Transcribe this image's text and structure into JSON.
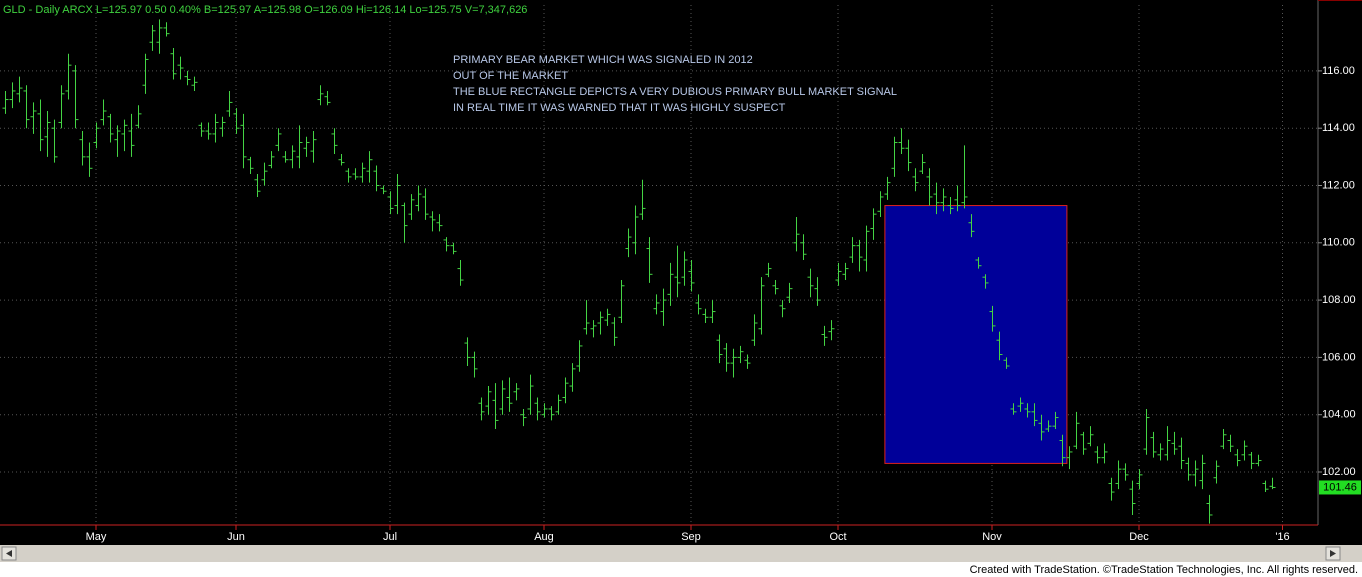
{
  "chart_data": {
    "type": "ohlc",
    "header": "GLD - Daily  ARCX  L=125.97  0.50  0.40%  B=125.97  A=125.98  O=126.09  Hi=126.14  Lo=125.75  V=7,347,626",
    "annotations": [
      "PRIMARY BEAR MARKET WHICH WAS SIGNALED IN 2012",
      "OUT OF THE MARKET",
      "THE BLUE RECTANGLE DEPICTS A VERY DUBIOUS PRIMARY BULL MARKET SIGNAL",
      "IN REAL TIME IT WAS WARNED THAT IT WAS HIGHLY SUSPECT"
    ],
    "footer": "Created with TradeStation. ©TradeStation Technologies, Inc. All rights reserved.",
    "color": "#44d444",
    "ylim": [
      100.15,
      118.3
    ],
    "yticks": [
      {
        "value": 102,
        "label": "102.00"
      },
      {
        "value": 104,
        "label": "104.00"
      },
      {
        "value": 106,
        "label": "106.00"
      },
      {
        "value": 108,
        "label": "108.00"
      },
      {
        "value": 110,
        "label": "110.00"
      },
      {
        "value": 112,
        "label": "112.00"
      },
      {
        "value": 114,
        "label": "114.00"
      },
      {
        "value": 116,
        "label": "116.00"
      }
    ],
    "xticks": [
      {
        "value": 13,
        "label": "May"
      },
      {
        "value": 33,
        "label": "Jun"
      },
      {
        "value": 55,
        "label": "Jul"
      },
      {
        "value": 77,
        "label": "Aug"
      },
      {
        "value": 98,
        "label": "Sep"
      },
      {
        "value": 119,
        "label": "Oct"
      },
      {
        "value": 141,
        "label": "Nov"
      },
      {
        "value": 162,
        "label": "Dec"
      },
      {
        "value": 182.5,
        "label": "'16"
      }
    ],
    "grid": true,
    "last_price": 101.46,
    "rectangle": {
      "start": 125.7,
      "end": 151.7,
      "top": 111.3,
      "bottom": 102.3,
      "fill": "#000099",
      "border": "#dd2222"
    },
    "ohlc": [
      [
        114.7,
        115.3,
        114.5,
        115.0
      ],
      [
        115.0,
        115.6,
        114.7,
        115.3
      ],
      [
        115.2,
        115.8,
        114.9,
        115.4
      ],
      [
        115.3,
        115.5,
        114.0,
        114.3
      ],
      [
        114.4,
        114.9,
        113.8,
        114.6
      ],
      [
        114.5,
        115.0,
        113.2,
        113.6
      ],
      [
        113.7,
        114.6,
        113.0,
        114.2
      ],
      [
        114.0,
        114.3,
        112.8,
        113.0
      ],
      [
        114.2,
        115.5,
        114.0,
        115.2
      ],
      [
        115.3,
        116.6,
        115.0,
        116.2
      ],
      [
        116.0,
        116.2,
        114.0,
        114.3
      ],
      [
        113.6,
        113.9,
        112.7,
        113.0
      ],
      [
        113.0,
        113.5,
        112.3,
        112.6
      ],
      [
        113.5,
        114.2,
        113.3,
        114.0
      ],
      [
        114.3,
        115.0,
        114.1,
        114.6
      ],
      [
        114.4,
        114.5,
        113.5,
        113.8
      ],
      [
        113.6,
        114.1,
        113.0,
        113.9
      ],
      [
        113.8,
        114.3,
        113.2,
        114.1
      ],
      [
        113.9,
        114.5,
        113.0,
        113.4
      ],
      [
        114.1,
        114.8,
        114.0,
        114.5
      ],
      [
        115.5,
        116.6,
        115.2,
        116.4
      ],
      [
        117.0,
        117.6,
        116.7,
        117.4
      ],
      [
        117.0,
        117.8,
        116.6,
        117.5
      ],
      [
        117.5,
        117.7,
        117.2,
        117.3
      ],
      [
        116.6,
        116.8,
        115.7,
        115.9
      ],
      [
        116.2,
        116.5,
        115.7,
        116.1
      ],
      [
        115.8,
        116.0,
        115.5,
        115.7
      ],
      [
        115.5,
        115.8,
        115.3,
        115.6
      ],
      [
        114.1,
        114.2,
        113.7,
        113.9
      ],
      [
        113.9,
        114.2,
        113.6,
        113.8
      ],
      [
        113.8,
        114.5,
        113.5,
        114.2
      ],
      [
        114.0,
        114.4,
        113.7,
        114.2
      ],
      [
        114.6,
        115.3,
        114.4,
        114.9
      ],
      [
        114.5,
        114.7,
        113.8,
        114.0
      ],
      [
        114.1,
        114.5,
        112.6,
        113.0
      ],
      [
        112.9,
        113.0,
        112.4,
        112.6
      ],
      [
        112.2,
        112.4,
        111.6,
        111.8
      ],
      [
        112.2,
        112.8,
        112.0,
        112.5
      ],
      [
        112.7,
        113.2,
        112.6,
        113.0
      ],
      [
        113.4,
        114.0,
        113.2,
        113.8
      ],
      [
        113.0,
        113.2,
        112.8,
        112.9
      ],
      [
        112.9,
        113.4,
        112.6,
        113.2
      ],
      [
        113.0,
        114.1,
        112.6,
        113.5
      ],
      [
        113.3,
        113.7,
        113.0,
        113.5
      ],
      [
        113.2,
        113.9,
        112.8,
        113.6
      ],
      [
        115.0,
        115.5,
        114.8,
        115.2
      ],
      [
        115.1,
        115.3,
        114.8,
        114.9
      ],
      [
        113.8,
        114.0,
        113.1,
        113.4
      ],
      [
        112.9,
        113.1,
        112.7,
        112.8
      ],
      [
        112.5,
        112.6,
        112.1,
        112.3
      ],
      [
        112.4,
        112.6,
        112.2,
        112.3
      ],
      [
        112.3,
        112.8,
        112.1,
        112.6
      ],
      [
        112.5,
        113.2,
        112.1,
        112.9
      ],
      [
        112.5,
        112.7,
        111.8,
        112.0
      ],
      [
        111.9,
        112.0,
        111.7,
        111.8
      ],
      [
        111.6,
        111.8,
        111.0,
        111.2
      ],
      [
        111.3,
        112.4,
        111.0,
        112.0
      ],
      [
        111.3,
        111.4,
        110.0,
        110.6
      ],
      [
        111.0,
        111.7,
        110.8,
        111.5
      ],
      [
        111.3,
        112.0,
        111.1,
        111.7
      ],
      [
        111.6,
        111.9,
        110.8,
        111.0
      ],
      [
        110.9,
        111.1,
        110.4,
        110.8
      ],
      [
        110.7,
        111.0,
        110.4,
        110.6
      ],
      [
        110.1,
        110.2,
        109.7,
        109.9
      ],
      [
        109.9,
        110.0,
        109.6,
        109.7
      ],
      [
        109.1,
        109.4,
        108.5,
        108.7
      ],
      [
        106.5,
        106.7,
        105.7,
        106.0
      ],
      [
        106.0,
        106.2,
        105.3,
        105.6
      ],
      [
        104.4,
        104.6,
        103.8,
        104.1
      ],
      [
        104.3,
        105.0,
        104.0,
        104.8
      ],
      [
        104.5,
        105.1,
        103.5,
        103.8
      ],
      [
        104.2,
        105.2,
        104.0,
        104.9
      ],
      [
        104.6,
        105.3,
        104.1,
        104.4
      ],
      [
        104.8,
        105.1,
        104.5,
        104.9
      ],
      [
        104.0,
        104.2,
        103.6,
        103.9
      ],
      [
        104.2,
        105.4,
        104.0,
        105.0
      ],
      [
        104.4,
        104.6,
        103.8,
        104.1
      ],
      [
        104.0,
        104.4,
        103.9,
        104.2
      ],
      [
        104.2,
        104.3,
        103.8,
        104.0
      ],
      [
        104.1,
        104.7,
        104.0,
        104.5
      ],
      [
        104.6,
        105.3,
        104.4,
        105.1
      ],
      [
        105.0,
        105.8,
        104.8,
        105.6
      ],
      [
        105.7,
        106.6,
        105.5,
        106.4
      ],
      [
        107.0,
        108.0,
        106.8,
        107.2
      ],
      [
        107.0,
        107.3,
        106.7,
        107.1
      ],
      [
        107.2,
        107.6,
        106.8,
        107.4
      ],
      [
        107.3,
        107.7,
        107.1,
        107.5
      ],
      [
        107.2,
        107.4,
        106.4,
        106.7
      ],
      [
        107.4,
        108.7,
        107.2,
        108.5
      ],
      [
        109.8,
        110.5,
        109.5,
        110.2
      ],
      [
        110.0,
        111.3,
        109.6,
        110.9
      ],
      [
        111.0,
        112.2,
        110.8,
        111.2
      ],
      [
        109.8,
        110.2,
        108.6,
        108.9
      ],
      [
        107.7,
        108.2,
        107.5,
        107.9
      ],
      [
        107.6,
        108.4,
        107.1,
        108.0
      ],
      [
        108.2,
        109.3,
        107.8,
        108.9
      ],
      [
        108.8,
        109.9,
        108.1,
        108.6
      ],
      [
        108.8,
        109.7,
        108.5,
        109.4
      ],
      [
        109.0,
        109.4,
        108.3,
        108.6
      ],
      [
        107.9,
        108.2,
        107.5,
        107.7
      ],
      [
        107.5,
        107.7,
        107.2,
        107.4
      ],
      [
        107.4,
        108.0,
        107.2,
        107.6
      ],
      [
        106.6,
        106.8,
        105.8,
        106.1
      ],
      [
        106.3,
        106.5,
        105.5,
        105.8
      ],
      [
        105.8,
        106.3,
        105.3,
        106.0
      ],
      [
        106.0,
        106.4,
        105.8,
        106.2
      ],
      [
        105.9,
        106.1,
        105.6,
        105.8
      ],
      [
        106.6,
        107.5,
        106.4,
        107.2
      ],
      [
        107.0,
        108.8,
        106.8,
        108.5
      ],
      [
        108.9,
        109.3,
        108.8,
        109.1
      ],
      [
        108.5,
        108.7,
        108.2,
        108.4
      ],
      [
        107.8,
        108.0,
        107.4,
        107.7
      ],
      [
        108.1,
        108.6,
        107.9,
        108.4
      ],
      [
        110.0,
        110.9,
        109.7,
        110.3
      ],
      [
        110.0,
        110.3,
        109.4,
        109.6
      ],
      [
        108.8,
        109.1,
        108.1,
        108.5
      ],
      [
        108.4,
        108.8,
        107.8,
        108.0
      ],
      [
        106.8,
        107.1,
        106.4,
        106.7
      ],
      [
        106.9,
        107.3,
        106.6,
        107.0
      ],
      [
        108.7,
        109.3,
        108.5,
        109.0
      ],
      [
        108.9,
        109.3,
        108.7,
        109.1
      ],
      [
        109.5,
        110.2,
        109.3,
        109.9
      ],
      [
        109.9,
        110.1,
        109.0,
        109.5
      ],
      [
        109.4,
        110.6,
        109.0,
        110.4
      ],
      [
        110.5,
        111.2,
        110.1,
        111.0
      ],
      [
        111.1,
        111.8,
        110.9,
        111.6
      ],
      [
        111.7,
        112.3,
        111.5,
        112.1
      ],
      [
        112.6,
        113.7,
        112.3,
        113.5
      ],
      [
        113.5,
        114.0,
        113.1,
        113.3
      ],
      [
        113.3,
        113.6,
        112.5,
        112.8
      ],
      [
        112.3,
        112.6,
        111.8,
        112.1
      ],
      [
        112.5,
        113.1,
        112.4,
        112.8
      ],
      [
        112.3,
        112.6,
        111.3,
        111.6
      ],
      [
        111.7,
        112.1,
        111.0,
        111.4
      ],
      [
        111.4,
        111.9,
        111.1,
        111.6
      ],
      [
        111.3,
        111.6,
        111.0,
        111.2
      ],
      [
        111.5,
        112.0,
        111.1,
        111.3
      ],
      [
        111.4,
        113.4,
        111.2,
        111.6
      ],
      [
        110.7,
        111.0,
        110.2,
        110.4
      ],
      [
        109.4,
        109.5,
        109.1,
        109.2
      ],
      [
        108.8,
        108.9,
        108.4,
        108.6
      ],
      [
        107.6,
        107.8,
        106.9,
        107.1
      ],
      [
        106.6,
        106.9,
        105.9,
        106.1
      ],
      [
        105.9,
        106.0,
        105.6,
        105.7
      ],
      [
        104.2,
        104.4,
        104.0,
        104.1
      ],
      [
        104.3,
        104.6,
        104.1,
        104.4
      ],
      [
        104.2,
        104.4,
        103.9,
        104.1
      ],
      [
        104.1,
        104.4,
        103.6,
        103.8
      ],
      [
        103.7,
        104.0,
        103.1,
        103.4
      ],
      [
        103.5,
        103.8,
        103.4,
        103.6
      ],
      [
        103.6,
        104.1,
        103.5,
        103.9
      ],
      [
        103.1,
        103.3,
        102.2,
        102.5
      ],
      [
        102.5,
        102.9,
        102.1,
        102.7
      ],
      [
        102.9,
        104.1,
        102.8,
        103.7
      ],
      [
        103.3,
        103.4,
        102.6,
        102.8
      ],
      [
        103.0,
        103.6,
        102.9,
        103.3
      ],
      [
        102.7,
        102.9,
        102.3,
        102.5
      ],
      [
        102.5,
        103.0,
        102.3,
        102.7
      ],
      [
        101.6,
        101.8,
        101.0,
        101.3
      ],
      [
        101.6,
        102.4,
        101.4,
        102.1
      ],
      [
        102.1,
        102.3,
        101.7,
        101.9
      ],
      [
        101.4,
        101.7,
        100.5,
        100.9
      ],
      [
        101.6,
        102.1,
        101.4,
        101.9
      ],
      [
        102.8,
        104.2,
        102.6,
        103.9
      ],
      [
        103.2,
        103.4,
        102.5,
        102.7
      ],
      [
        102.6,
        103.0,
        102.4,
        102.8
      ],
      [
        102.6,
        103.6,
        102.4,
        103.1
      ],
      [
        103.0,
        103.4,
        102.6,
        102.8
      ],
      [
        102.9,
        103.2,
        102.1,
        102.4
      ],
      [
        102.3,
        102.5,
        101.7,
        101.9
      ],
      [
        101.9,
        102.4,
        101.5,
        102.1
      ],
      [
        101.7,
        102.6,
        101.4,
        102.3
      ],
      [
        100.9,
        101.2,
        100.2,
        100.5
      ],
      [
        101.8,
        102.4,
        101.6,
        102.2
      ],
      [
        102.9,
        103.5,
        102.8,
        103.3
      ],
      [
        103.1,
        103.3,
        102.7,
        102.9
      ],
      [
        102.6,
        102.8,
        102.2,
        102.4
      ],
      [
        102.6,
        103.1,
        102.4,
        102.9
      ],
      [
        102.6,
        102.7,
        102.1,
        102.3
      ],
      [
        102.3,
        102.6,
        102.2,
        102.4
      ],
      [
        101.6,
        101.7,
        101.3,
        101.4
      ],
      [
        101.5,
        101.8,
        101.4,
        101.46
      ]
    ]
  }
}
